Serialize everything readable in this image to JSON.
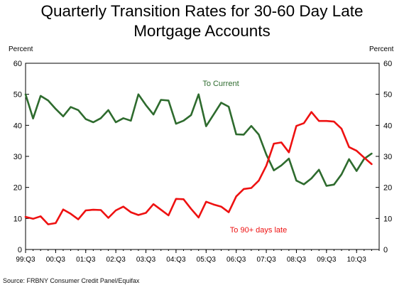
{
  "title_line1": "Quarterly Transition Rates for 30-60 Day Late",
  "title_line2": "Mortgage Accounts",
  "source": "Source: FRBNY Consumer Credit Panel/Equifax",
  "colors": {
    "to_current": "#2e6b2e",
    "to_90": "#ee1111",
    "axis": "#000000"
  },
  "chart_data": {
    "type": "line",
    "ylabel_left": "Percent",
    "ylabel_right": "Percent",
    "ylim": [
      0,
      60
    ],
    "yticks": [
      0,
      10,
      20,
      30,
      40,
      50,
      60
    ],
    "xlim": [
      0,
      47
    ],
    "xticks": [
      {
        "i": 0,
        "label": "99:Q3"
      },
      {
        "i": 4,
        "label": "00:Q3"
      },
      {
        "i": 8,
        "label": "01:Q3"
      },
      {
        "i": 12,
        "label": "02:Q3"
      },
      {
        "i": 16,
        "label": "03:Q3"
      },
      {
        "i": 20,
        "label": "04:Q3"
      },
      {
        "i": 24,
        "label": "05:Q3"
      },
      {
        "i": 28,
        "label": "06:Q3"
      },
      {
        "i": 32,
        "label": "07:Q3"
      },
      {
        "i": 36,
        "label": "08:Q3"
      },
      {
        "i": 40,
        "label": "09:Q3"
      },
      {
        "i": 44,
        "label": "10:Q3"
      }
    ],
    "series": [
      {
        "name": "To Current",
        "color": "#2e6b2e",
        "values": [
          50.0,
          42.2,
          49.5,
          48.0,
          45.3,
          42.9,
          45.9,
          44.9,
          42.0,
          41.0,
          42.3,
          44.9,
          41.0,
          42.3,
          41.5,
          50.0,
          46.5,
          43.5,
          48.2,
          48.0,
          40.5,
          41.5,
          43.3,
          50.0,
          39.7,
          43.5,
          47.3,
          46.0,
          37.1,
          37.0,
          39.8,
          37.0,
          30.6,
          25.5,
          27.1,
          29.3,
          22.2,
          21.0,
          22.9,
          25.7,
          20.5,
          20.9,
          24.2,
          29.1,
          25.3,
          29.2,
          30.9
        ]
      },
      {
        "name": "To 90+ days late",
        "color": "#ee1111",
        "values": [
          10.5,
          9.9,
          10.7,
          8.1,
          8.5,
          12.9,
          11.5,
          9.7,
          12.6,
          12.8,
          12.7,
          10.2,
          12.6,
          13.8,
          12.0,
          11.1,
          11.8,
          14.6,
          12.8,
          11.0,
          16.3,
          16.2,
          13.1,
          10.3,
          15.4,
          14.5,
          13.8,
          12.0,
          17.1,
          19.5,
          19.8,
          22.2,
          27.0,
          34.1,
          34.5,
          31.3,
          39.8,
          40.7,
          44.3,
          41.4,
          41.4,
          41.2,
          38.9,
          33.0,
          31.8,
          29.6,
          27.5
        ]
      }
    ],
    "annotations": [
      {
        "text": "To Current",
        "series": 0
      },
      {
        "text": "To 90+ days late",
        "series": 1
      }
    ]
  }
}
